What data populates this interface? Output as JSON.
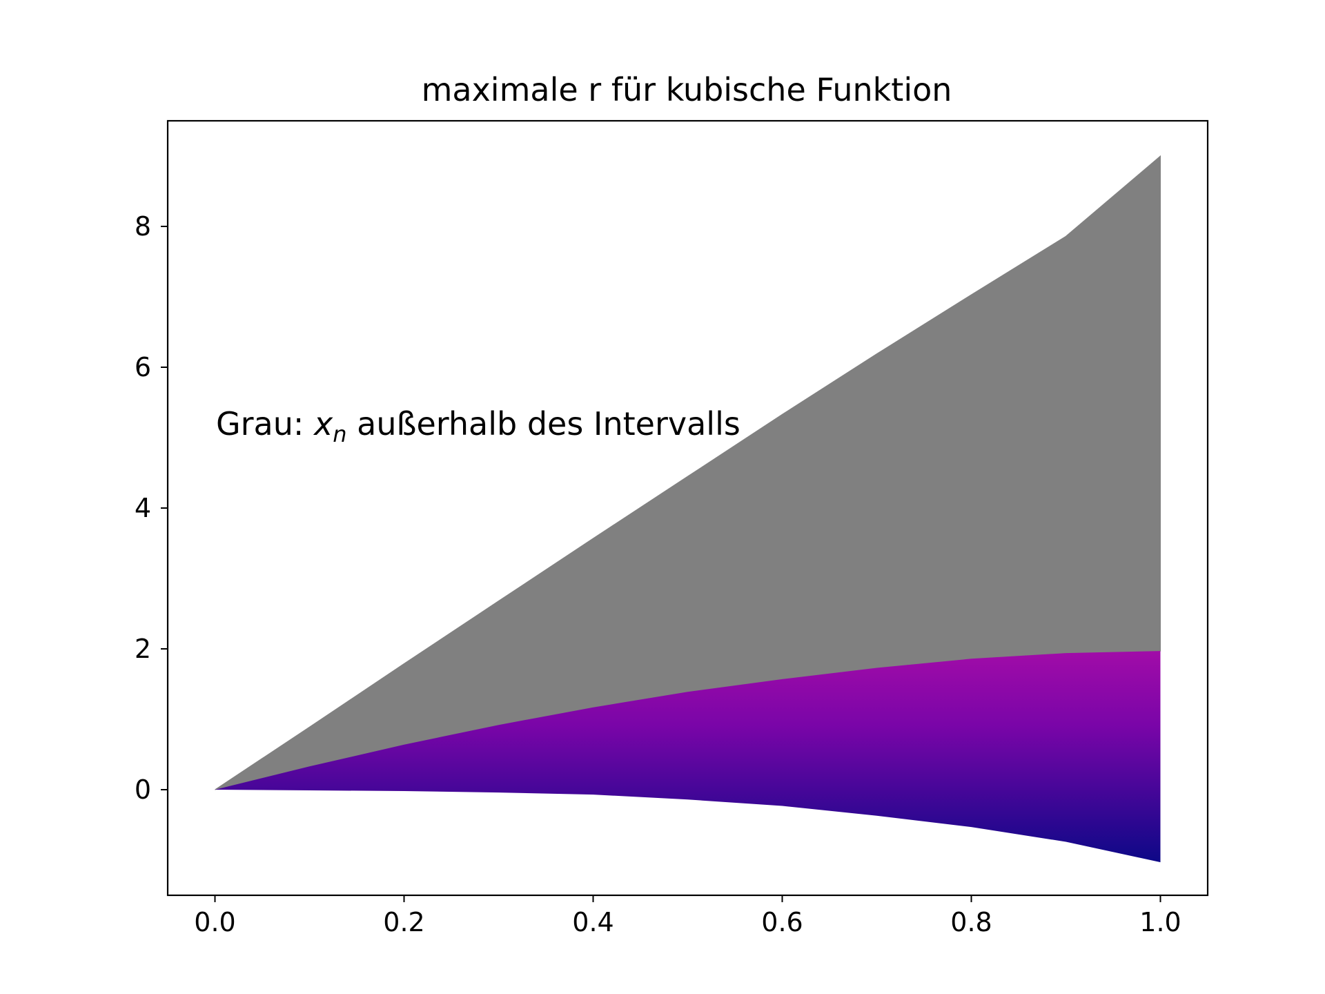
{
  "chart_data": {
    "type": "area",
    "title": "maximale r für kubische Funktion",
    "xlabel": "",
    "ylabel": "",
    "xlim": [
      -0.05,
      1.05
    ],
    "ylim": [
      -1.5,
      9.5
    ],
    "xticks": [
      "0.0",
      "0.2",
      "0.4",
      "0.6",
      "0.8",
      "1.0"
    ],
    "yticks": [
      "0",
      "2",
      "4",
      "6",
      "8"
    ],
    "grid": false,
    "legend": "none",
    "annotation": {
      "prefix": "Grau: ",
      "var": "x",
      "sub": "n",
      "suffix": " außerhalb des Intervalls"
    },
    "x": [
      0.0,
      0.1,
      0.2,
      0.3,
      0.4,
      0.5,
      0.6,
      0.7,
      0.8,
      0.9,
      1.0
    ],
    "series": [
      {
        "values": [
          0.0,
          0.89,
          1.79,
          2.68,
          3.57,
          4.45,
          5.33,
          6.19,
          7.03,
          7.86,
          9.0
        ],
        "color": "#808080"
      },
      {
        "values": [
          0.0,
          0.33,
          0.64,
          0.92,
          1.17,
          1.39,
          1.57,
          1.73,
          1.86,
          1.94,
          1.97
        ],
        "color": "#8b0aa5"
      },
      {
        "values": [
          0.0,
          -0.01,
          -0.02,
          -0.04,
          -0.07,
          -0.14,
          -0.23,
          -0.37,
          -0.53,
          -0.74,
          -1.03
        ],
        "color": "#0d0887"
      }
    ]
  }
}
